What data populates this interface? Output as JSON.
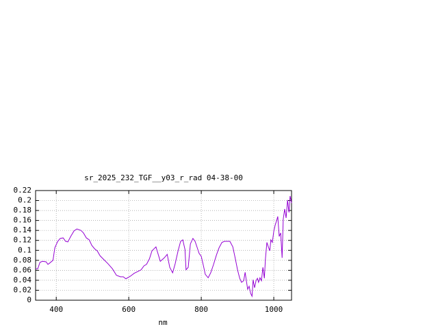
{
  "chart_data": {
    "type": "line",
    "title": "sr_2025_232_TGF__y03_r_rad 04-38-00",
    "xlabel": "nm",
    "x": [
      343,
      349,
      355,
      362,
      372,
      377,
      381,
      391,
      396,
      404,
      411,
      419,
      426,
      432,
      440,
      449,
      457,
      468,
      475,
      483,
      491,
      498,
      506,
      513,
      521,
      532,
      543,
      555,
      566,
      577,
      585,
      592,
      604,
      615,
      626,
      634,
      642,
      649,
      657,
      664,
      675,
      687,
      698,
      706,
      713,
      721,
      728,
      736,
      743,
      749,
      755,
      758,
      764,
      770,
      777,
      783,
      789,
      794,
      800,
      806,
      811,
      819,
      826,
      834,
      842,
      849,
      857,
      864,
      872,
      879,
      887,
      894,
      900,
      906,
      911,
      917,
      921,
      925,
      928,
      932,
      936,
      940,
      943,
      947,
      951,
      955,
      958,
      962,
      966,
      970,
      974,
      977,
      981,
      985,
      989,
      992,
      996,
      1000,
      1004,
      1008,
      1011,
      1015,
      1019,
      1023,
      1026,
      1030,
      1034,
      1038,
      1042,
      1045,
      1049
    ],
    "values": [
      0.063,
      0.063,
      0.076,
      0.078,
      0.077,
      0.072,
      0.074,
      0.08,
      0.105,
      0.118,
      0.124,
      0.125,
      0.118,
      0.117,
      0.128,
      0.139,
      0.143,
      0.14,
      0.135,
      0.125,
      0.121,
      0.11,
      0.103,
      0.099,
      0.089,
      0.081,
      0.073,
      0.063,
      0.05,
      0.047,
      0.047,
      0.043,
      0.048,
      0.054,
      0.058,
      0.061,
      0.069,
      0.072,
      0.083,
      0.099,
      0.107,
      0.078,
      0.085,
      0.092,
      0.066,
      0.055,
      0.073,
      0.099,
      0.118,
      0.121,
      0.102,
      0.061,
      0.066,
      0.113,
      0.124,
      0.118,
      0.105,
      0.094,
      0.088,
      0.069,
      0.052,
      0.045,
      0.055,
      0.072,
      0.091,
      0.105,
      0.116,
      0.118,
      0.118,
      0.118,
      0.107,
      0.083,
      0.061,
      0.044,
      0.036,
      0.039,
      0.056,
      0.036,
      0.022,
      0.028,
      0.014,
      0.008,
      0.041,
      0.025,
      0.039,
      0.044,
      0.036,
      0.045,
      0.039,
      0.066,
      0.044,
      0.083,
      0.116,
      0.107,
      0.099,
      0.121,
      0.116,
      0.138,
      0.151,
      0.16,
      0.168,
      0.128,
      0.135,
      0.085,
      0.162,
      0.183,
      0.165,
      0.201,
      0.176,
      0.209,
      0.195
    ],
    "color": "#9400d3",
    "xlim": [
      343,
      1049
    ],
    "xticks": [
      400,
      600,
      800,
      1000
    ],
    "ylim": [
      0,
      0.22
    ],
    "yticks": [
      0,
      0.02,
      0.04,
      0.06,
      0.08,
      0.1,
      0.12,
      0.14,
      0.16,
      0.18,
      0.2,
      0.22
    ],
    "grid": true
  }
}
